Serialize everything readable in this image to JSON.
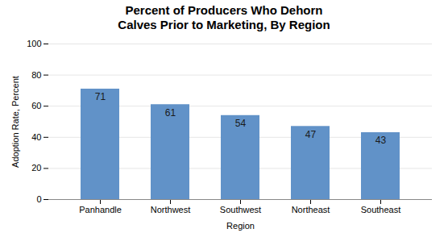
{
  "chart_data": {
    "type": "bar",
    "title": "Percent of Producers Who Dehorn\nCalves Prior to Marketing, By Region",
    "xlabel": "Region",
    "ylabel": "Adoption Rate, Percent",
    "categories": [
      "Panhandle",
      "Northwest",
      "Southwest",
      "Northeast",
      "Southeast"
    ],
    "values": [
      71,
      61,
      54,
      47,
      43
    ],
    "color": "#6192c8",
    "ylim": [
      0,
      100
    ],
    "yticks": [
      0,
      20,
      40,
      60,
      80,
      100
    ],
    "grid": true,
    "data_labels": true
  }
}
